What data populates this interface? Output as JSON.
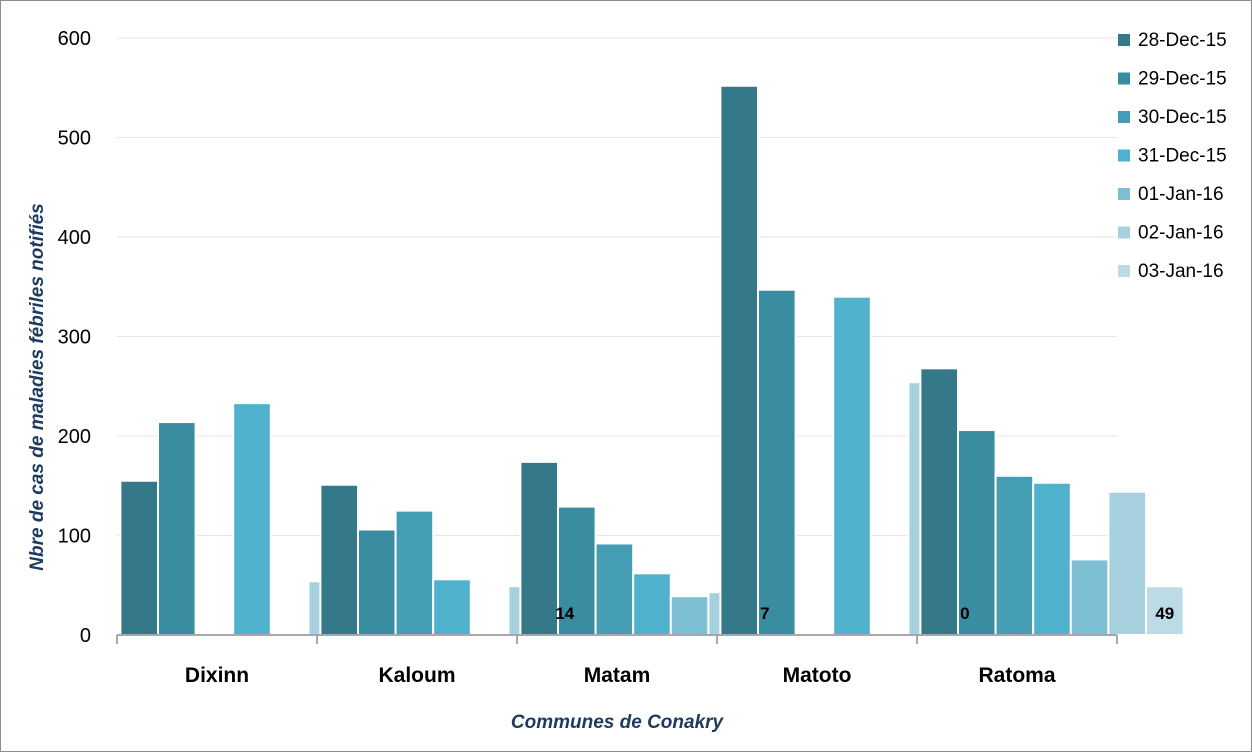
{
  "chart_data": {
    "type": "bar",
    "title": "",
    "xlabel": "Communes de Conakry",
    "ylabel": "Nbre de cas de maladies fébriles notifiés",
    "ylim": [
      0,
      600
    ],
    "yticks": [
      0,
      100,
      200,
      300,
      400,
      500,
      600
    ],
    "grid": true,
    "legend_position": "right",
    "categories": [
      "Dixinn",
      "Kaloum",
      "Matam",
      "Matoto",
      "Ratoma"
    ],
    "series": [
      {
        "name": "28-Dec-15",
        "color": "#35788a",
        "values": [
          155,
          151,
          174,
          552,
          268
        ]
      },
      {
        "name": "29-Dec-15",
        "color": "#3a8ca1",
        "values": [
          214,
          106,
          129,
          347,
          206
        ]
      },
      {
        "name": "30-Dec-15",
        "color": "#459db4",
        "values": [
          null,
          125,
          92,
          null,
          160
        ]
      },
      {
        "name": "31-Dec-15",
        "color": "#4fb1cc",
        "values": [
          233,
          56,
          62,
          340,
          153
        ]
      },
      {
        "name": "01-Jan-16",
        "color": "#7dbfd2",
        "values": [
          null,
          null,
          39,
          null,
          76
        ]
      },
      {
        "name": "02-Jan-16",
        "color": "#a7d0de",
        "values": [
          54,
          49,
          43,
          254,
          144
        ]
      },
      {
        "name": "03-Jan-16",
        "color": "#bcdbe6",
        "values": [
          null,
          14,
          7,
          0,
          49
        ]
      }
    ],
    "data_labels": [
      {
        "category": "Kaloum",
        "series": "03-Jan-16",
        "text": "14"
      },
      {
        "category": "Matam",
        "series": "03-Jan-16",
        "text": "7"
      },
      {
        "category": "Matoto",
        "series": "03-Jan-16",
        "text": "0"
      },
      {
        "category": "Ratoma",
        "series": "03-Jan-16",
        "text": "49"
      }
    ]
  }
}
